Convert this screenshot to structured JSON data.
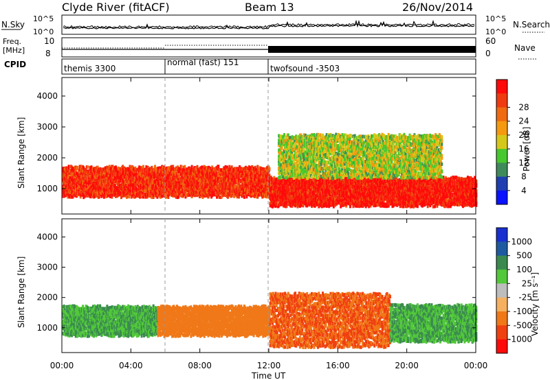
{
  "header": {
    "station": "Clyde River (fitACF)",
    "beam": "Beam 13",
    "date": "26/Nov/2014"
  },
  "nsky_panel": {
    "left_label": "N.Sky",
    "right_label": "N.Search",
    "left_ticks": [
      "10^5",
      "10^0"
    ],
    "right_ticks": [
      "10^5",
      "10^0"
    ]
  },
  "freq_panel": {
    "left_label_line1": "Freq.",
    "left_label_line2": "[MHz]",
    "left_ticks": [
      "10",
      "8"
    ],
    "right_label": "Nave",
    "right_ticks": [
      "60",
      "0"
    ]
  },
  "cpid_panel": {
    "label": "CPID",
    "modes": [
      {
        "name": "themis 3300",
        "start_h": 0,
        "end_h": 6
      },
      {
        "name": "normal (fast) 151",
        "start_h": 6,
        "end_h": 12
      },
      {
        "name": "twofsound -3503",
        "start_h": 12,
        "end_h": 24
      }
    ]
  },
  "power_panel": {
    "ylabel": "Slant Range [km]",
    "yticks": [
      "1000",
      "2000",
      "3000",
      "4000"
    ],
    "colorbar_label": "Power [dB]",
    "colorbar_ticks": [
      "4",
      "8",
      "12",
      "16",
      "20",
      "24",
      "28"
    ],
    "colorbar_colors": [
      "#0a12ff",
      "#1f3fb0",
      "#3f8a5a",
      "#47c82e",
      "#d6c81a",
      "#f59a10",
      "#f06a10",
      "#f03a10",
      "#ff0a0a"
    ]
  },
  "velocity_panel": {
    "ylabel": "Slant Range [km]",
    "yticks": [
      "1000",
      "2000",
      "3000",
      "4000"
    ],
    "colorbar_label": "Velocity [m s⁻¹]",
    "colorbar_ticks": [
      "1000",
      "500",
      "100",
      "25",
      "-25",
      "-100",
      "-500",
      "-1000"
    ],
    "colorbar_colors": [
      "#1a2fd0",
      "#1e5aa0",
      "#3a8a50",
      "#52c83a",
      "#bdbdbd",
      "#f5b060",
      "#f07818",
      "#f04010",
      "#ff0a0a"
    ]
  },
  "x_axis": {
    "ticks": [
      "00:00",
      "04:00",
      "08:00",
      "12:00",
      "16:00",
      "20:00",
      "00:00"
    ],
    "label": "Time UT"
  },
  "chart_data": {
    "type": "heatmap",
    "title": "Clyde River (fitACF)",
    "subtitle": "Beam 13",
    "date": "26/Nov/2014",
    "xlabel": "Time UT",
    "ylabel": "Slant Range [km]",
    "x_range_hours": [
      0,
      24
    ],
    "ylim_km": [
      180,
      4600
    ],
    "series": [
      {
        "name": "Power [dB]",
        "colorbar_range": [
          0,
          30
        ]
      },
      {
        "name": "Velocity [m s⁻¹]",
        "colorbar_range": [
          -1000,
          1000
        ]
      }
    ],
    "power_bands": [
      {
        "t0": 0.0,
        "t1": 12.0,
        "r0": 800,
        "r1": 1750,
        "value": 26
      },
      {
        "t0": 12.0,
        "t1": 24.0,
        "r0": 500,
        "r1": 1400,
        "value": 28
      },
      {
        "t0": 12.5,
        "t1": 22.0,
        "r0": 1400,
        "r1": 2800,
        "value": 14
      }
    ],
    "velocity_bands": [
      {
        "t0": 0.0,
        "t1": 5.5,
        "r0": 800,
        "r1": 1750,
        "value": 100
      },
      {
        "t0": 5.5,
        "t1": 12.0,
        "r0": 800,
        "r1": 1750,
        "value": -300
      },
      {
        "t0": 12.0,
        "t1": 19.0,
        "r0": 400,
        "r1": 2200,
        "value": -500
      },
      {
        "t0": 19.0,
        "t1": 24.0,
        "r0": 600,
        "r1": 1800,
        "value": 100
      }
    ]
  }
}
